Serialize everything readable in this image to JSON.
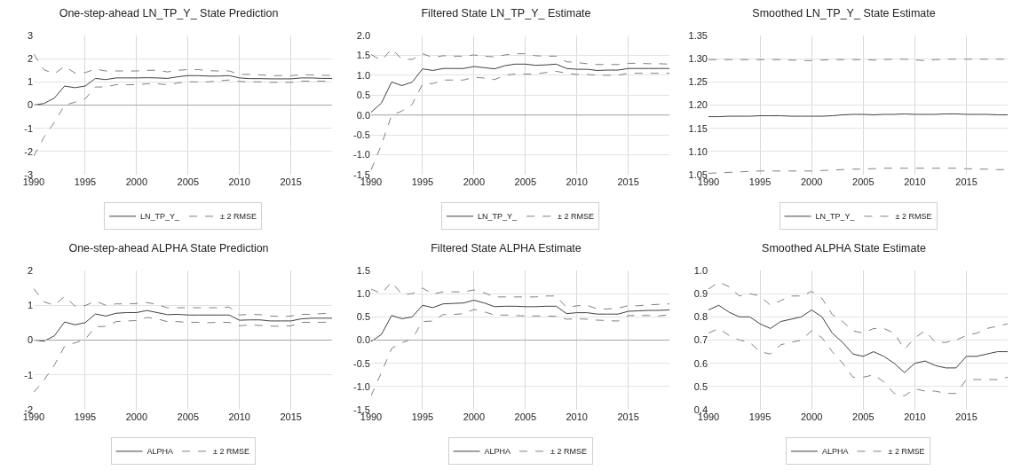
{
  "chart_data": [
    {
      "type": "line",
      "title": "One-step-ahead LN_TP_Y_ State Prediction",
      "x": [
        1990,
        1991,
        1992,
        1993,
        1994,
        1995,
        1996,
        1997,
        1998,
        1999,
        2000,
        2001,
        2002,
        2003,
        2004,
        2005,
        2006,
        2007,
        2008,
        2009,
        2010,
        2011,
        2012,
        2013,
        2014,
        2015,
        2016,
        2017,
        2018,
        2019
      ],
      "xlim": [
        1990,
        2019
      ],
      "xticks": [
        1990,
        1995,
        2000,
        2005,
        2010,
        2015
      ],
      "ylim": [
        -3,
        3
      ],
      "yticks": [
        -3,
        -2,
        -1,
        0,
        1,
        2,
        3
      ],
      "grid": true,
      "legend": "bottom",
      "ref_lines": [
        {
          "axis": "y",
          "value": 0,
          "color": "#a6a6a6"
        }
      ],
      "series": [
        {
          "name": "LN_TP_Y_",
          "color": "#404040",
          "line_style": "solid",
          "values": [
            0,
            0.07,
            0.3,
            0.82,
            0.75,
            0.82,
            1.15,
            1.1,
            1.17,
            1.17,
            1.17,
            1.18,
            1.17,
            1.15,
            1.22,
            1.27,
            1.27,
            1.25,
            1.25,
            1.27,
            1.17,
            1.14,
            1.14,
            1.13,
            1.13,
            1.13,
            1.17,
            1.17,
            1.15,
            1.15
          ]
        },
        {
          "name": "± 2 RMSE",
          "color": "#808080",
          "line_style": "dashed",
          "values": [
            2.2,
            1.52,
            1.35,
            1.67,
            1.38,
            1.4,
            1.55,
            1.47,
            1.47,
            1.47,
            1.47,
            1.5,
            1.5,
            1.43,
            1.5,
            1.53,
            1.53,
            1.48,
            1.47,
            1.47,
            1.33,
            1.32,
            1.3,
            1.27,
            1.27,
            1.27,
            1.3,
            1.3,
            1.28,
            1.28
          ]
        },
        {
          "color": "#808080",
          "line_style": "dashed",
          "values": [
            -2.2,
            -1.38,
            -0.75,
            0,
            0.12,
            0.27,
            0.78,
            0.78,
            0.88,
            0.88,
            0.88,
            0.92,
            0.92,
            0.88,
            0.95,
            1.0,
            1.0,
            1.0,
            1.05,
            1.08,
            1.02,
            1.0,
            1.0,
            0.98,
            0.98,
            0.98,
            1.03,
            1.03,
            1.03,
            1.03
          ]
        }
      ]
    },
    {
      "type": "line",
      "title": "Filtered State LN_TP_Y_ Estimate",
      "x": [
        1990,
        1991,
        1992,
        1993,
        1994,
        1995,
        1996,
        1997,
        1998,
        1999,
        2000,
        2001,
        2002,
        2003,
        2004,
        2005,
        2006,
        2007,
        2008,
        2009,
        2010,
        2011,
        2012,
        2013,
        2014,
        2015,
        2016,
        2017,
        2018,
        2019
      ],
      "xlim": [
        1990,
        2019
      ],
      "xticks": [
        1990,
        1995,
        2000,
        2005,
        2010,
        2015
      ],
      "ylim": [
        -1.5,
        2
      ],
      "yticks": [
        {
          "value": -1.5,
          "label": "-1.5"
        },
        {
          "value": -1,
          "label": "-1.0"
        },
        {
          "value": -0.5,
          "label": "-0.5"
        },
        {
          "value": 0,
          "label": "0.0"
        },
        {
          "value": 0.5,
          "label": "0.5"
        },
        {
          "value": 1,
          "label": "1.0"
        },
        {
          "value": 1.5,
          "label": "1.5"
        },
        {
          "value": 2,
          "label": "2.0"
        }
      ],
      "grid": true,
      "legend": "bottom",
      "ref_lines": [
        {
          "axis": "y",
          "value": 0,
          "color": "#a6a6a6"
        }
      ],
      "series": [
        {
          "name": "LN_TP_Y_",
          "color": "#404040",
          "line_style": "solid",
          "values": [
            0.07,
            0.3,
            0.83,
            0.74,
            0.83,
            1.16,
            1.12,
            1.17,
            1.17,
            1.17,
            1.22,
            1.19,
            1.16,
            1.24,
            1.28,
            1.28,
            1.25,
            1.26,
            1.28,
            1.17,
            1.15,
            1.15,
            1.12,
            1.13,
            1.13,
            1.17,
            1.17,
            1.17,
            1.17,
            1.17
          ]
        },
        {
          "name": "± 2 RMSE",
          "color": "#808080",
          "line_style": "dashed",
          "values": [
            1.52,
            1.37,
            1.66,
            1.4,
            1.4,
            1.54,
            1.45,
            1.49,
            1.48,
            1.48,
            1.51,
            1.48,
            1.46,
            1.51,
            1.54,
            1.54,
            1.49,
            1.48,
            1.48,
            1.34,
            1.32,
            1.29,
            1.27,
            1.27,
            1.27,
            1.3,
            1.3,
            1.29,
            1.29,
            1.28
          ]
        },
        {
          "color": "#808080",
          "line_style": "dashed",
          "values": [
            -1.38,
            -0.75,
            0,
            0.1,
            0.27,
            0.78,
            0.79,
            0.88,
            0.88,
            0.88,
            0.95,
            0.93,
            0.89,
            1.0,
            1.03,
            1.03,
            1.03,
            1.07,
            1.1,
            1.05,
            1.02,
            1.02,
            1.0,
            1.0,
            1.0,
            1.05,
            1.05,
            1.05,
            1.05,
            1.05
          ]
        }
      ]
    },
    {
      "type": "line",
      "title": "Smoothed LN_TP_Y_ State Estimate",
      "x": [
        1990,
        1991,
        1992,
        1993,
        1994,
        1995,
        1996,
        1997,
        1998,
        1999,
        2000,
        2001,
        2002,
        2003,
        2004,
        2005,
        2006,
        2007,
        2008,
        2009,
        2010,
        2011,
        2012,
        2013,
        2014,
        2015,
        2016,
        2017,
        2018,
        2019
      ],
      "xlim": [
        1990,
        2019
      ],
      "xticks": [
        1990,
        1995,
        2000,
        2005,
        2010,
        2015
      ],
      "ylim": [
        1.05,
        1.35
      ],
      "yticks": [
        {
          "value": 1.05,
          "label": "1.05"
        },
        {
          "value": 1.1,
          "label": "1.10"
        },
        {
          "value": 1.15,
          "label": "1.15"
        },
        {
          "value": 1.2,
          "label": "1.20"
        },
        {
          "value": 1.25,
          "label": "1.25"
        },
        {
          "value": 1.3,
          "label": "1.30"
        },
        {
          "value": 1.35,
          "label": "1.35"
        }
      ],
      "grid": true,
      "legend": "bottom",
      "series": [
        {
          "name": "LN_TP_Y_",
          "color": "#404040",
          "line_style": "solid",
          "values": [
            1.175,
            1.175,
            1.176,
            1.176,
            1.176,
            1.177,
            1.177,
            1.177,
            1.176,
            1.176,
            1.176,
            1.176,
            1.177,
            1.179,
            1.18,
            1.18,
            1.179,
            1.18,
            1.18,
            1.181,
            1.18,
            1.18,
            1.18,
            1.181,
            1.181,
            1.18,
            1.18,
            1.18,
            1.179,
            1.179
          ]
        },
        {
          "name": "± 2 RMSE",
          "color": "#808080",
          "line_style": "dashed",
          "values": [
            1.298,
            1.298,
            1.298,
            1.298,
            1.298,
            1.298,
            1.298,
            1.298,
            1.297,
            1.296,
            1.296,
            1.297,
            1.298,
            1.298,
            1.298,
            1.298,
            1.297,
            1.298,
            1.299,
            1.299,
            1.297,
            1.296,
            1.298,
            1.299,
            1.299,
            1.299,
            1.299,
            1.299,
            1.299,
            1.299
          ]
        },
        {
          "color": "#808080",
          "line_style": "dashed",
          "values": [
            1.053,
            1.054,
            1.055,
            1.056,
            1.057,
            1.058,
            1.058,
            1.058,
            1.058,
            1.058,
            1.058,
            1.059,
            1.06,
            1.061,
            1.062,
            1.062,
            1.063,
            1.064,
            1.064,
            1.064,
            1.064,
            1.064,
            1.064,
            1.064,
            1.064,
            1.063,
            1.062,
            1.062,
            1.061,
            1.061
          ]
        }
      ]
    },
    {
      "type": "line",
      "title": "One-step-ahead ALPHA State Prediction",
      "x": [
        1990,
        1991,
        1992,
        1993,
        1994,
        1995,
        1996,
        1997,
        1998,
        1999,
        2000,
        2001,
        2002,
        2003,
        2004,
        2005,
        2006,
        2007,
        2008,
        2009,
        2010,
        2011,
        2012,
        2013,
        2014,
        2015,
        2016,
        2017,
        2018,
        2019
      ],
      "xlim": [
        1990,
        2019
      ],
      "xticks": [
        1990,
        1995,
        2000,
        2005,
        2010,
        2015
      ],
      "ylim": [
        -2,
        2
      ],
      "yticks": [
        -2,
        -1,
        0,
        1,
        2
      ],
      "grid": true,
      "legend": "bottom",
      "ref_lines": [
        {
          "axis": "y",
          "value": 0,
          "color": "#a6a6a6"
        }
      ],
      "series": [
        {
          "name": "ALPHA",
          "color": "#404040",
          "line_style": "solid",
          "values": [
            0,
            -0.03,
            0.12,
            0.52,
            0.44,
            0.5,
            0.75,
            0.69,
            0.77,
            0.79,
            0.79,
            0.85,
            0.79,
            0.73,
            0.74,
            0.72,
            0.72,
            0.72,
            0.72,
            0.72,
            0.57,
            0.58,
            0.58,
            0.55,
            0.55,
            0.55,
            0.61,
            0.63,
            0.63,
            0.63
          ]
        },
        {
          "name": "± 2 RMSE",
          "color": "#808080",
          "line_style": "dashed",
          "values": [
            1.48,
            1.1,
            1.0,
            1.25,
            0.98,
            0.99,
            1.12,
            1.0,
            1.04,
            1.04,
            1.05,
            1.08,
            1.02,
            0.93,
            0.93,
            0.93,
            0.93,
            0.93,
            0.93,
            0.95,
            0.72,
            0.74,
            0.73,
            0.69,
            0.68,
            0.69,
            0.74,
            0.74,
            0.76,
            0.77
          ]
        },
        {
          "color": "#808080",
          "line_style": "dashed",
          "values": [
            -1.5,
            -1.15,
            -0.72,
            -0.18,
            -0.08,
            0.02,
            0.39,
            0.39,
            0.53,
            0.55,
            0.56,
            0.65,
            0.61,
            0.53,
            0.53,
            0.51,
            0.51,
            0.5,
            0.51,
            0.51,
            0.41,
            0.44,
            0.42,
            0.4,
            0.4,
            0.41,
            0.51,
            0.51,
            0.51,
            0.52
          ]
        }
      ]
    },
    {
      "type": "line",
      "title": "Filtered State ALPHA Estimate",
      "x": [
        1990,
        1991,
        1992,
        1993,
        1994,
        1995,
        1996,
        1997,
        1998,
        1999,
        2000,
        2001,
        2002,
        2003,
        2004,
        2005,
        2006,
        2007,
        2008,
        2009,
        2010,
        2011,
        2012,
        2013,
        2014,
        2015,
        2016,
        2017,
        2018,
        2019
      ],
      "xlim": [
        1990,
        2019
      ],
      "xticks": [
        1990,
        1995,
        2000,
        2005,
        2010,
        2015
      ],
      "ylim": [
        -1.5,
        1.5
      ],
      "yticks": [
        {
          "value": -1.5,
          "label": "-1.5"
        },
        {
          "value": -1,
          "label": "-1.0"
        },
        {
          "value": -0.5,
          "label": "-0.5"
        },
        {
          "value": 0,
          "label": "0.0"
        },
        {
          "value": 0.5,
          "label": "0.5"
        },
        {
          "value": 1,
          "label": "1.0"
        },
        {
          "value": 1.5,
          "label": "1.5"
        }
      ],
      "grid": true,
      "legend": "bottom",
      "ref_lines": [
        {
          "axis": "y",
          "value": 0,
          "color": "#a6a6a6"
        }
      ],
      "series": [
        {
          "name": "ALPHA",
          "color": "#404040",
          "line_style": "solid",
          "values": [
            -0.03,
            0.12,
            0.53,
            0.46,
            0.5,
            0.75,
            0.7,
            0.78,
            0.79,
            0.8,
            0.86,
            0.8,
            0.72,
            0.73,
            0.73,
            0.72,
            0.72,
            0.73,
            0.73,
            0.57,
            0.59,
            0.59,
            0.56,
            0.56,
            0.56,
            0.62,
            0.63,
            0.64,
            0.64,
            0.65
          ]
        },
        {
          "name": "± 2 RMSE",
          "color": "#808080",
          "line_style": "dashed",
          "values": [
            1.1,
            1.0,
            1.25,
            0.98,
            1.0,
            1.12,
            0.99,
            1.04,
            1.04,
            1.04,
            1.08,
            1.02,
            0.93,
            0.93,
            0.93,
            0.93,
            0.93,
            0.95,
            0.95,
            0.7,
            0.74,
            0.75,
            0.67,
            0.67,
            0.69,
            0.74,
            0.74,
            0.76,
            0.77,
            0.78
          ]
        },
        {
          "color": "#808080",
          "line_style": "dashed",
          "values": [
            -1.2,
            -0.7,
            -0.18,
            -0.06,
            0.03,
            0.4,
            0.41,
            0.55,
            0.55,
            0.57,
            0.66,
            0.61,
            0.54,
            0.54,
            0.53,
            0.52,
            0.52,
            0.52,
            0.51,
            0.45,
            0.46,
            0.45,
            0.43,
            0.42,
            0.41,
            0.53,
            0.53,
            0.53,
            0.52,
            0.55
          ]
        }
      ]
    },
    {
      "type": "line",
      "title": "Smoothed ALPHA State Estimate",
      "x": [
        1990,
        1991,
        1992,
        1993,
        1994,
        1995,
        1996,
        1997,
        1998,
        1999,
        2000,
        2001,
        2002,
        2003,
        2004,
        2005,
        2006,
        2007,
        2008,
        2009,
        2010,
        2011,
        2012,
        2013,
        2014,
        2015,
        2016,
        2017,
        2018,
        2019
      ],
      "xlim": [
        1990,
        2019
      ],
      "xticks": [
        1990,
        1995,
        2000,
        2005,
        2010,
        2015
      ],
      "ylim": [
        0.4,
        1.0
      ],
      "yticks": [
        0.4,
        0.5,
        0.6,
        0.7,
        0.8,
        0.9,
        {
          "value": 1.0,
          "label": "1.0"
        }
      ],
      "grid": true,
      "legend": "bottom",
      "series": [
        {
          "name": "ALPHA",
          "color": "#404040",
          "line_style": "solid",
          "values": [
            0.83,
            0.85,
            0.82,
            0.8,
            0.8,
            0.77,
            0.75,
            0.78,
            0.79,
            0.8,
            0.83,
            0.8,
            0.73,
            0.69,
            0.64,
            0.63,
            0.65,
            0.63,
            0.6,
            0.56,
            0.6,
            0.61,
            0.59,
            0.58,
            0.58,
            0.63,
            0.63,
            0.64,
            0.65,
            0.65
          ]
        },
        {
          "name": "± 2 RMSE",
          "color": "#808080",
          "line_style": "dashed",
          "values": [
            0.92,
            0.95,
            0.93,
            0.89,
            0.9,
            0.89,
            0.85,
            0.87,
            0.89,
            0.89,
            0.91,
            0.88,
            0.81,
            0.78,
            0.74,
            0.73,
            0.75,
            0.75,
            0.73,
            0.66,
            0.71,
            0.74,
            0.69,
            0.69,
            0.7,
            0.72,
            0.73,
            0.75,
            0.76,
            0.77
          ]
        },
        {
          "color": "#808080",
          "line_style": "dashed",
          "values": [
            0.73,
            0.75,
            0.72,
            0.7,
            0.69,
            0.65,
            0.64,
            0.68,
            0.69,
            0.7,
            0.74,
            0.71,
            0.65,
            0.6,
            0.54,
            0.54,
            0.55,
            0.52,
            0.47,
            0.46,
            0.49,
            0.48,
            0.48,
            0.47,
            0.47,
            0.53,
            0.53,
            0.53,
            0.53,
            0.54
          ]
        }
      ]
    }
  ]
}
